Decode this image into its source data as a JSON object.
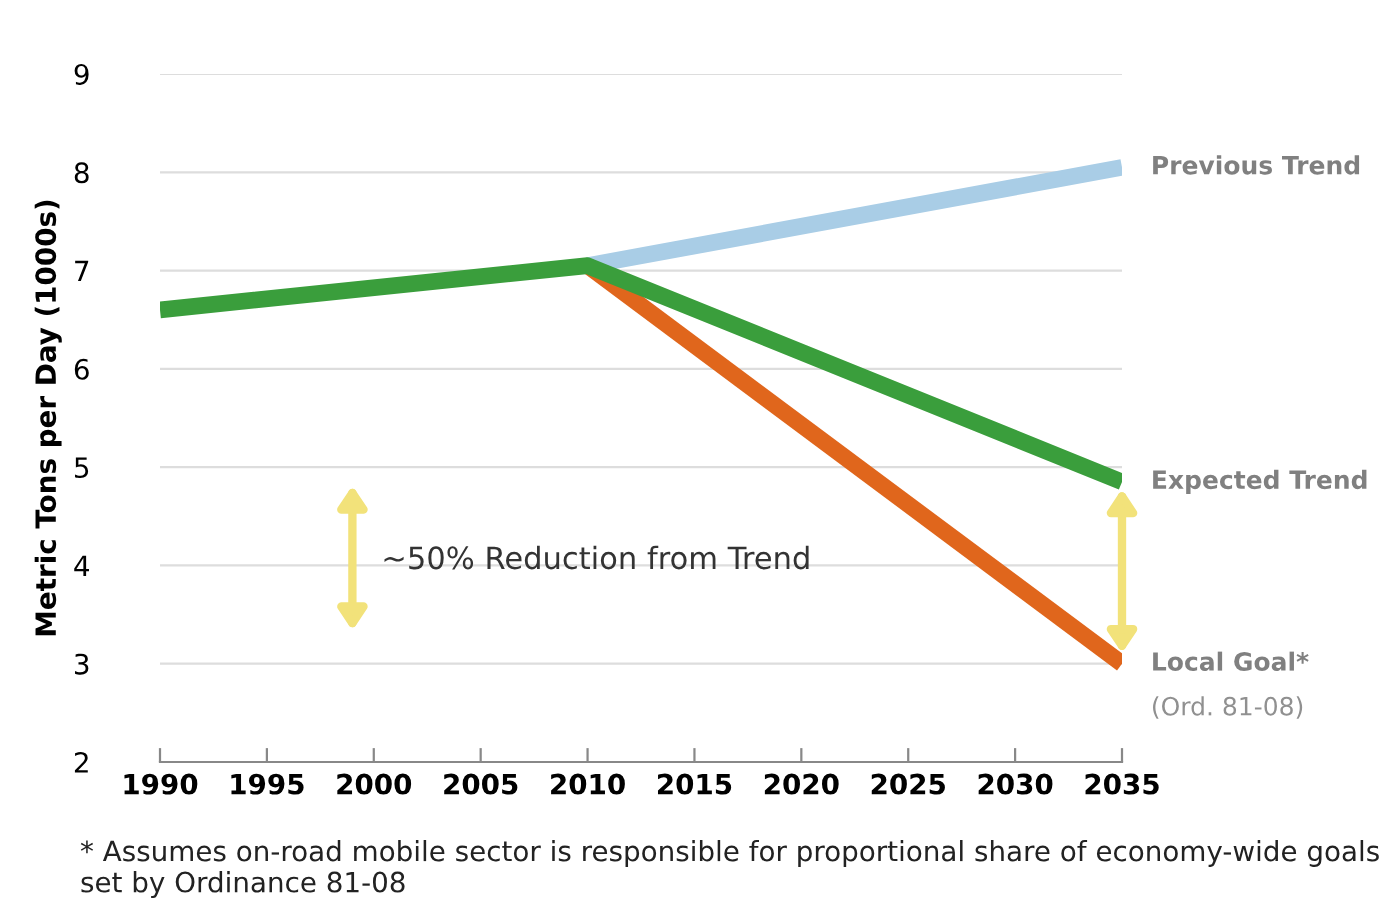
{
  "chart_data": {
    "type": "line",
    "ylabel": "Metric Tons per Day (1000s)",
    "xlim": [
      1990,
      2035
    ],
    "xticks": [
      1990,
      1995,
      2000,
      2005,
      2010,
      2015,
      2020,
      2025,
      2030,
      2035
    ],
    "ylim": [
      2,
      9
    ],
    "yticks": [
      2,
      3,
      4,
      5,
      6,
      7,
      8,
      9
    ],
    "grid": "y",
    "legend": false,
    "marker": "none",
    "line_style": "solid",
    "series": [
      {
        "name": "Previous Trend",
        "color": "#a9cde6",
        "x": [
          2010,
          2035
        ],
        "values": [
          7.05,
          8.05
        ]
      },
      {
        "name": "Local Goal*",
        "color": "#e0661c",
        "x": [
          2010,
          2035
        ],
        "values": [
          7.05,
          3.0
        ]
      },
      {
        "name": "Expected Trend",
        "color": "#3a9e3c",
        "x": [
          1990,
          2010,
          2035
        ],
        "values": [
          6.6,
          7.05,
          4.85
        ]
      }
    ],
    "annotations": [
      "~50% Reduction from Trend",
      "(Ord. 81-08)",
      "* Assumes on-road mobile sector is responsible for proportional share of economy-wide goals set by Ordinance 81-08"
    ]
  }
}
